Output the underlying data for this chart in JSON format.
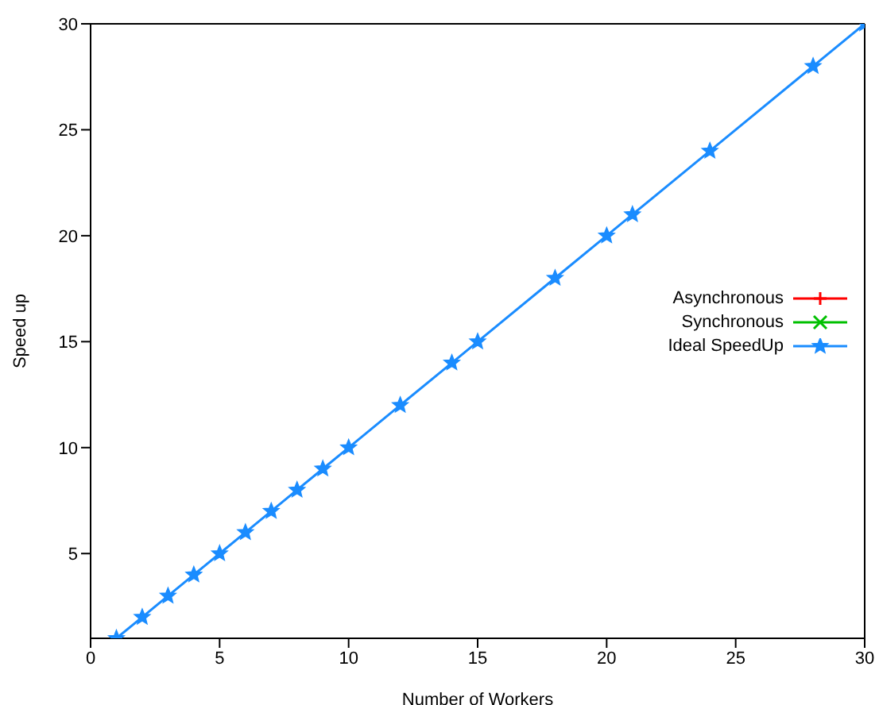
{
  "chart_data": {
    "type": "line",
    "xlabel": "Number of Workers",
    "ylabel": "Speed up",
    "x": [
      1,
      2,
      3,
      4,
      5,
      6,
      7,
      8,
      9,
      10,
      12,
      14,
      15,
      18,
      20,
      21,
      24,
      28,
      30
    ],
    "series": [
      {
        "name": "Asynchronous",
        "color": "#ff0000",
        "marker": "cross",
        "values": [
          null,
          null,
          null,
          null,
          null,
          null,
          null,
          null,
          null,
          null,
          null,
          null,
          null,
          null,
          null,
          null,
          null,
          null,
          null
        ]
      },
      {
        "name": "Synchronous",
        "color": "#00c000",
        "marker": "x",
        "values": [
          null,
          null,
          null,
          null,
          null,
          null,
          null,
          null,
          null,
          null,
          null,
          null,
          null,
          null,
          null,
          null,
          null,
          null,
          null
        ]
      },
      {
        "name": "Ideal SpeedUp",
        "color": "#1a8cff",
        "marker": "star",
        "values": [
          1,
          2,
          3,
          4,
          5,
          6,
          7,
          8,
          9,
          10,
          12,
          14,
          15,
          18,
          20,
          21,
          24,
          28,
          30
        ]
      }
    ],
    "xlim": [
      0,
      30
    ],
    "xticks": [
      0,
      5,
      10,
      15,
      20,
      25,
      30
    ],
    "ylim": [
      1,
      30
    ],
    "yticks": [
      5,
      10,
      15,
      20,
      25,
      30
    ],
    "grid": false,
    "legend": "right",
    "line_style": "solid"
  }
}
